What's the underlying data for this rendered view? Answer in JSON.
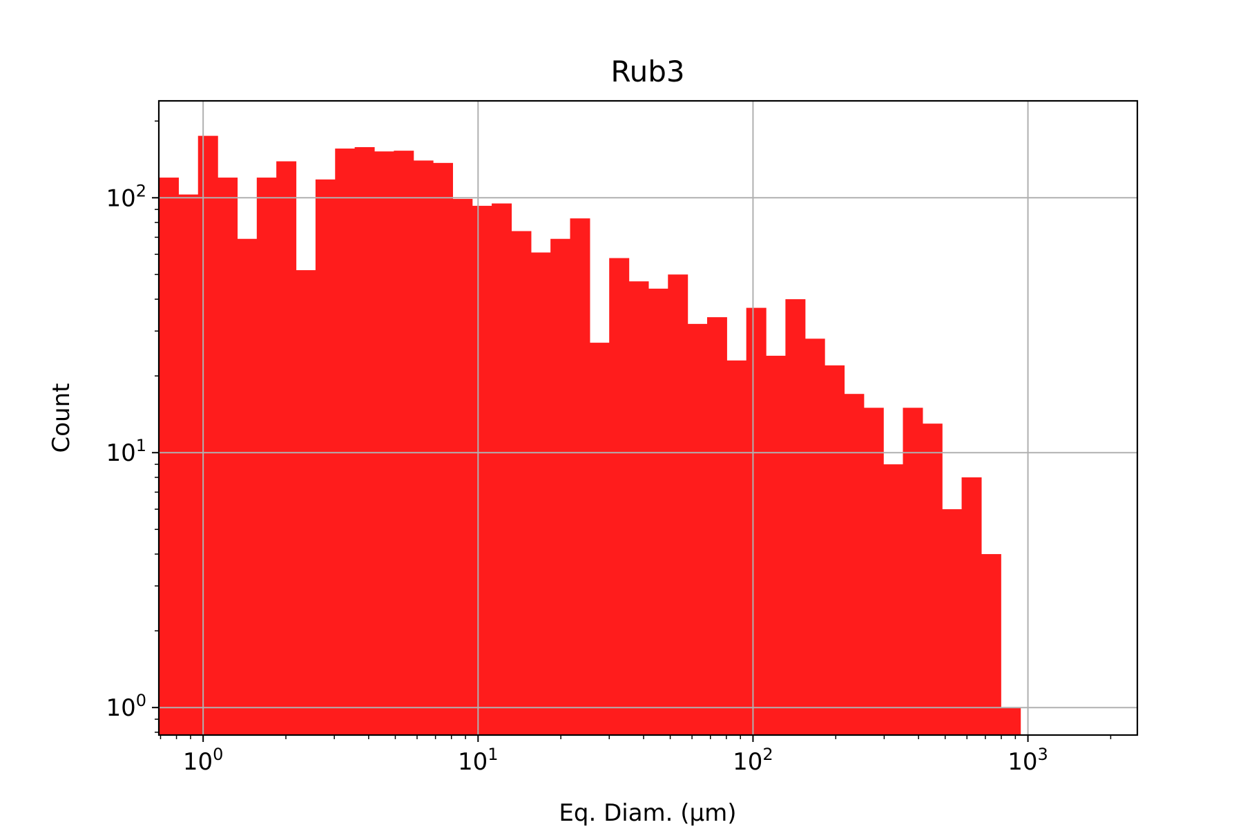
{
  "chart_data": {
    "type": "bar",
    "title": "Rub3",
    "xlabel": "Eq. Diam. (µm)",
    "ylabel": "Count",
    "xscale": "log",
    "yscale": "log",
    "xlim": [
      0.69,
      2500
    ],
    "ylim": [
      0.78,
      240
    ],
    "grid": true,
    "bar_color": "#ff1c1c",
    "x_ticks": [
      {
        "value": 1,
        "base": "10",
        "exp": "0"
      },
      {
        "value": 10,
        "base": "10",
        "exp": "1"
      },
      {
        "value": 100,
        "base": "10",
        "exp": "2"
      },
      {
        "value": 1000,
        "base": "10",
        "exp": "3"
      }
    ],
    "y_ticks": [
      {
        "value": 1,
        "base": "10",
        "exp": "0"
      },
      {
        "value": 10,
        "base": "10",
        "exp": "1"
      },
      {
        "value": 100,
        "base": "10",
        "exp": "2"
      }
    ],
    "bin_edges": [
      0.69,
      0.813,
      0.958,
      1.129,
      1.33,
      1.567,
      1.846,
      2.175,
      2.563,
      3.02,
      3.558,
      4.192,
      4.939,
      5.819,
      6.856,
      8.078,
      9.517,
      11.21,
      13.21,
      15.57,
      18.34,
      21.61,
      25.46,
      29.99,
      35.34,
      41.63,
      49.05,
      57.79,
      68.09,
      80.22,
      94.52,
      111.4,
      131.2,
      154.6,
      182.1,
      214.6,
      252.8,
      297.9,
      350.9,
      413.5,
      487.1,
      573.9,
      676.2,
      796.7,
      938.6,
      1105.9
    ],
    "values": [
      120,
      103,
      175,
      120,
      69,
      120,
      139,
      52,
      118,
      156,
      158,
      152,
      153,
      140,
      137,
      99,
      93,
      95,
      74,
      61,
      69,
      83,
      27,
      58,
      47,
      44,
      50,
      32,
      34,
      23,
      37,
      24,
      40,
      28,
      22,
      17,
      15,
      9,
      15,
      13,
      6,
      8,
      4,
      1,
      0
    ]
  }
}
